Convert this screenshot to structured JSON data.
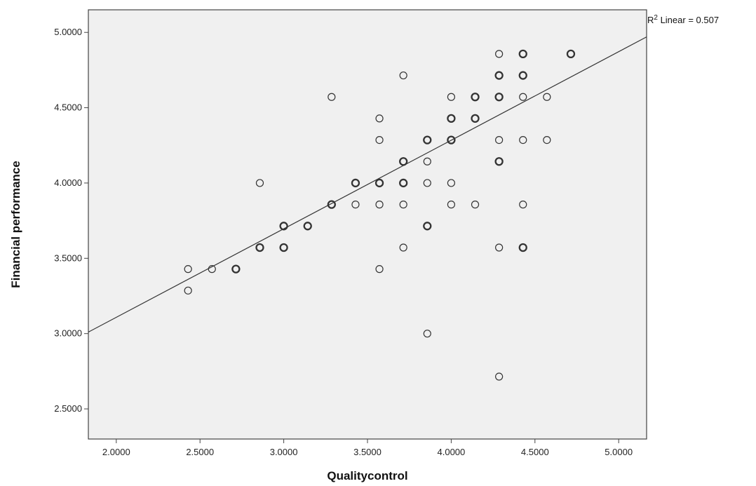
{
  "chart_data": {
    "type": "scatter",
    "title": "",
    "xlabel": "Qualitycontrol",
    "ylabel": "Financial performance",
    "xlim": [
      1.8333,
      5.1667
    ],
    "ylim": [
      2.3,
      5.15
    ],
    "x_ticks": [
      "2.0000",
      "2.5000",
      "3.0000",
      "3.5000",
      "4.0000",
      "4.5000",
      "5.0000"
    ],
    "y_ticks": [
      "2.5000",
      "3.0000",
      "3.5000",
      "4.0000",
      "4.5000",
      "5.0000"
    ],
    "grid": false,
    "plot_background": "#f0f0f0",
    "marker_color": "#333333",
    "fit_line": {
      "type": "linear",
      "label": "R² Linear = 0.507",
      "x": [
        1.8333,
        5.1667
      ],
      "y": [
        3.01,
        4.97
      ]
    },
    "points": [
      {
        "x": 4.2857,
        "y": 4.8571
      },
      {
        "x": 4.4286,
        "y": 4.8571,
        "n": 2
      },
      {
        "x": 4.7143,
        "y": 4.8571,
        "n": 2
      },
      {
        "x": 3.7143,
        "y": 4.7143
      },
      {
        "x": 4.2857,
        "y": 4.7143,
        "n": 2
      },
      {
        "x": 4.4286,
        "y": 4.7143,
        "n": 2
      },
      {
        "x": 3.2857,
        "y": 4.5714
      },
      {
        "x": 4.0,
        "y": 4.5714
      },
      {
        "x": 4.1429,
        "y": 4.5714,
        "n": 2
      },
      {
        "x": 4.2857,
        "y": 4.5714,
        "n": 2
      },
      {
        "x": 4.4286,
        "y": 4.5714
      },
      {
        "x": 4.5714,
        "y": 4.5714
      },
      {
        "x": 3.5714,
        "y": 4.4286
      },
      {
        "x": 4.0,
        "y": 4.4286,
        "n": 2
      },
      {
        "x": 4.1429,
        "y": 4.4286,
        "n": 2
      },
      {
        "x": 3.5714,
        "y": 4.2857
      },
      {
        "x": 3.8571,
        "y": 4.2857,
        "n": 2
      },
      {
        "x": 4.0,
        "y": 4.2857,
        "n": 2
      },
      {
        "x": 4.2857,
        "y": 4.2857
      },
      {
        "x": 4.4286,
        "y": 4.2857
      },
      {
        "x": 4.5714,
        "y": 4.2857
      },
      {
        "x": 3.7143,
        "y": 4.1429,
        "n": 2
      },
      {
        "x": 3.8571,
        "y": 4.1429
      },
      {
        "x": 4.2857,
        "y": 4.1429,
        "n": 2
      },
      {
        "x": 2.8571,
        "y": 4.0
      },
      {
        "x": 3.4286,
        "y": 4.0,
        "n": 2
      },
      {
        "x": 3.5714,
        "y": 4.0,
        "n": 2
      },
      {
        "x": 3.7143,
        "y": 4.0,
        "n": 2
      },
      {
        "x": 3.8571,
        "y": 4.0
      },
      {
        "x": 4.0,
        "y": 4.0
      },
      {
        "x": 3.2857,
        "y": 3.8571,
        "n": 2
      },
      {
        "x": 3.4286,
        "y": 3.8571
      },
      {
        "x": 3.5714,
        "y": 3.8571
      },
      {
        "x": 3.7143,
        "y": 3.8571
      },
      {
        "x": 4.0,
        "y": 3.8571
      },
      {
        "x": 4.1429,
        "y": 3.8571
      },
      {
        "x": 4.4286,
        "y": 3.8571
      },
      {
        "x": 3.0,
        "y": 3.7143,
        "n": 2
      },
      {
        "x": 3.1429,
        "y": 3.7143,
        "n": 2
      },
      {
        "x": 3.8571,
        "y": 3.7143,
        "n": 2
      },
      {
        "x": 2.8571,
        "y": 3.5714,
        "n": 2
      },
      {
        "x": 3.0,
        "y": 3.5714,
        "n": 2
      },
      {
        "x": 3.7143,
        "y": 3.5714
      },
      {
        "x": 4.2857,
        "y": 3.5714
      },
      {
        "x": 4.4286,
        "y": 3.5714,
        "n": 2
      },
      {
        "x": 2.4286,
        "y": 3.4286
      },
      {
        "x": 2.5714,
        "y": 3.4286
      },
      {
        "x": 2.7143,
        "y": 3.4286,
        "n": 2
      },
      {
        "x": 3.5714,
        "y": 3.4286
      },
      {
        "x": 2.4286,
        "y": 3.2857
      },
      {
        "x": 3.8571,
        "y": 3.0
      },
      {
        "x": 4.2857,
        "y": 2.7143
      }
    ]
  }
}
